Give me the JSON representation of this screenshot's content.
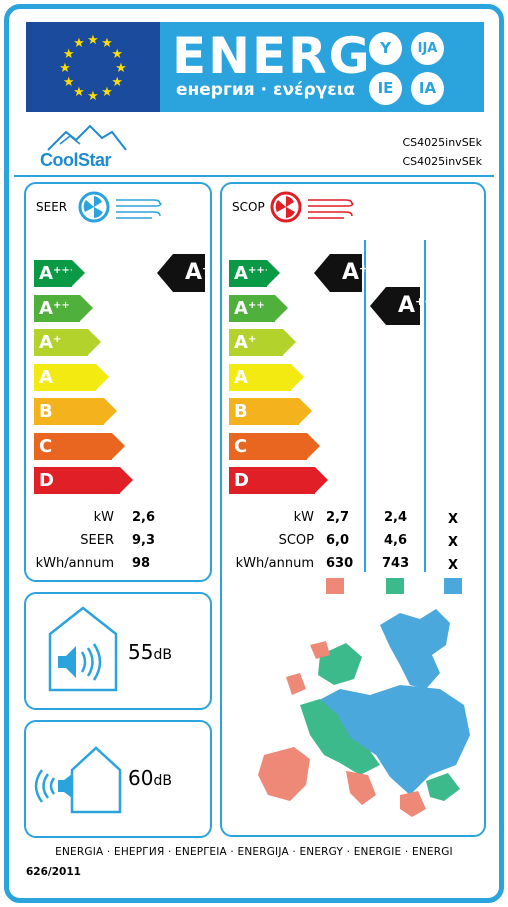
{
  "header": {
    "energy_word": "ENERG",
    "energy_subtitle": "енергия · ενέργεια",
    "lang_badges": [
      "Y",
      "IJA",
      "IE",
      "IA"
    ],
    "flag_color": "#1a4b9c",
    "band_color": "#2ba3dc",
    "star_color": "#ffdd00"
  },
  "brand": {
    "name": "CoolStar",
    "logo_icon": "mountain-logo-icon"
  },
  "model": {
    "indoor": "CS4025invSEk",
    "outdoor": "CS4025invSEk"
  },
  "classes": [
    {
      "letter": "A",
      "plus": "+++",
      "color": "#0a9a46"
    },
    {
      "letter": "A",
      "plus": "++",
      "color": "#4fb13b"
    },
    {
      "letter": "A",
      "plus": "+",
      "color": "#b3d22c"
    },
    {
      "letter": "A",
      "plus": "",
      "color": "#f2ea10"
    },
    {
      "letter": "B",
      "plus": "",
      "color": "#f4b21c"
    },
    {
      "letter": "C",
      "plus": "",
      "color": "#e8661f"
    },
    {
      "letter": "D",
      "plus": "",
      "color": "#e01f26"
    }
  ],
  "cooling": {
    "title": "SEER",
    "icon": "fan-cooling-icon",
    "rating": {
      "letter": "A",
      "plus": "+++"
    },
    "rows": [
      {
        "label": "kW",
        "value": "2,6"
      },
      {
        "label": "SEER",
        "value": "9,3"
      },
      {
        "label": "kWh/annum",
        "value": "98"
      }
    ]
  },
  "heating": {
    "title": "SCOP",
    "icon": "fan-heating-icon",
    "ratings": [
      {
        "zone": "warm",
        "letter": "A",
        "plus": "+++"
      },
      {
        "zone": "average",
        "letter": "A",
        "plus": "++"
      }
    ],
    "row_labels": [
      "kW",
      "SCOP",
      "kWh/annum"
    ],
    "columns": [
      {
        "zone": "warm",
        "color": "#ee8877",
        "values": [
          "2,7",
          "6,0",
          "630"
        ]
      },
      {
        "zone": "average",
        "color": "#3dba8c",
        "values": [
          "2,4",
          "4,6",
          "743"
        ]
      },
      {
        "zone": "colder",
        "color": "#4aa8dc",
        "values": [
          "X",
          "X",
          "X"
        ]
      }
    ]
  },
  "noise": {
    "indoor": {
      "value": "55",
      "unit": "dB",
      "icon": "indoor-speaker-icon"
    },
    "outdoor": {
      "value": "60",
      "unit": "dB",
      "icon": "outdoor-speaker-icon"
    }
  },
  "map": {
    "icon": "europe-climate-zones-map"
  },
  "footer": {
    "languages": "ENERGIA · ЕНЕРГИЯ · ΕΝΕΡΓΕΙΑ · ENERGIJA · ENERGY · ENERGIE · ENERGI",
    "regulation": "626/2011"
  }
}
